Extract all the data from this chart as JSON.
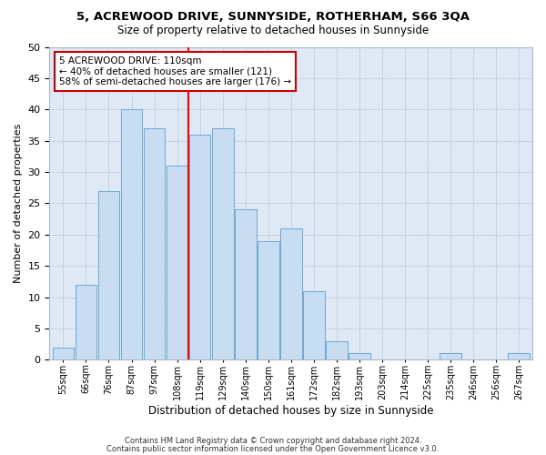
{
  "title": "5, ACREWOOD DRIVE, SUNNYSIDE, ROTHERHAM, S66 3QA",
  "subtitle": "Size of property relative to detached houses in Sunnyside",
  "xlabel": "Distribution of detached houses by size in Sunnyside",
  "ylabel": "Number of detached properties",
  "bins": [
    "55sqm",
    "66sqm",
    "76sqm",
    "87sqm",
    "97sqm",
    "108sqm",
    "119sqm",
    "129sqm",
    "140sqm",
    "150sqm",
    "161sqm",
    "172sqm",
    "182sqm",
    "193sqm",
    "203sqm",
    "214sqm",
    "225sqm",
    "235sqm",
    "246sqm",
    "256sqm",
    "267sqm"
  ],
  "values": [
    2,
    12,
    27,
    40,
    37,
    31,
    36,
    37,
    24,
    19,
    21,
    11,
    3,
    1,
    0,
    0,
    0,
    1,
    0,
    0,
    1
  ],
  "bar_color": "#c9ddf2",
  "bar_edge_color": "#6aaad4",
  "grid_color": "#c8d2e0",
  "bg_color": "#dfe8f5",
  "property_line_x": 5,
  "annotation_text": "5 ACREWOOD DRIVE: 110sqm\n← 40% of detached houses are smaller (121)\n58% of semi-detached houses are larger (176) →",
  "annotation_box_color": "#ffffff",
  "annotation_box_edge": "#cc0000",
  "footer_line1": "Contains HM Land Registry data © Crown copyright and database right 2024.",
  "footer_line2": "Contains public sector information licensed under the Open Government Licence v3.0.",
  "ylim": [
    0,
    50
  ],
  "yticks": [
    0,
    5,
    10,
    15,
    20,
    25,
    30,
    35,
    40,
    45,
    50
  ]
}
